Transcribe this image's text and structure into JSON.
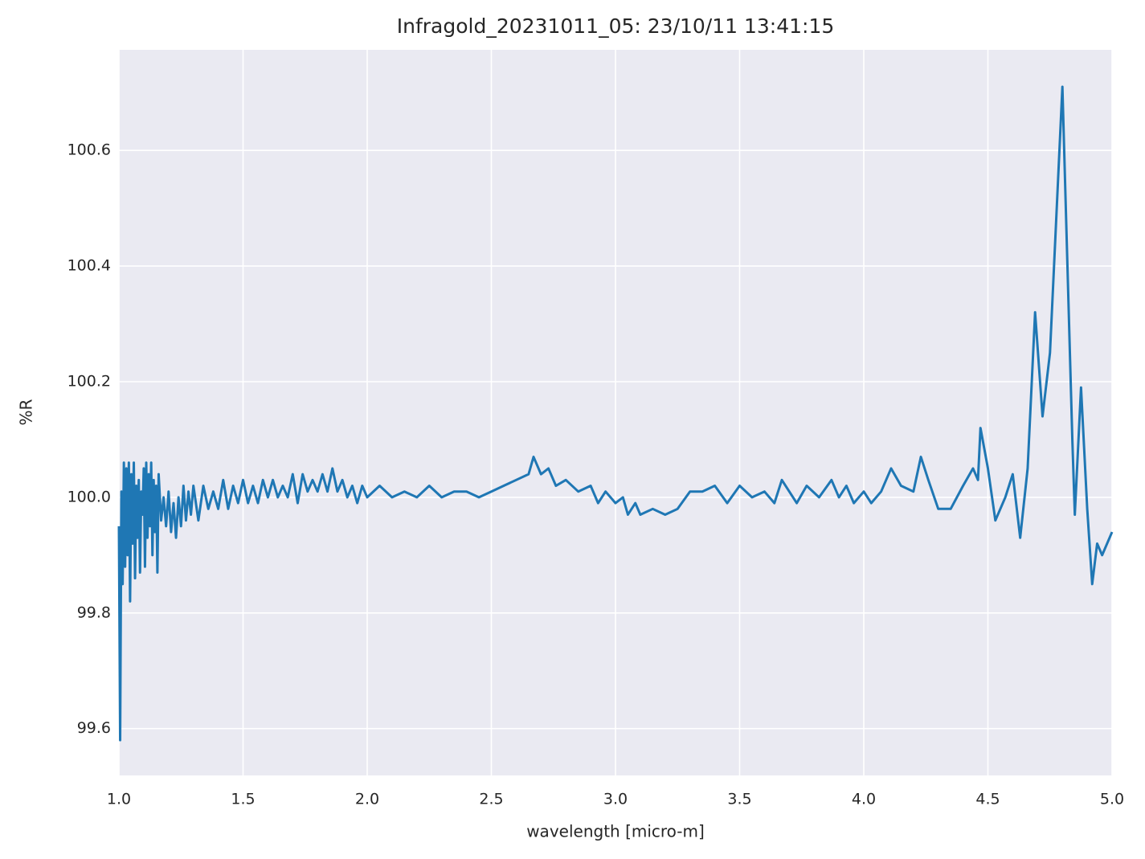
{
  "chart_data": {
    "type": "line",
    "title": "Infragold_20231011_05:  23/10/11 13:41:15",
    "xlabel": "wavelength [micro-m]",
    "ylabel": "%R",
    "xlim": [
      1,
      5
    ],
    "ylim": [
      99.519,
      100.774
    ],
    "xticks": [
      {
        "value": 1,
        "label": "1.0"
      },
      1.5,
      {
        "value": 2,
        "label": "2.0"
      },
      2.5,
      {
        "value": 3,
        "label": "3.0"
      },
      3.5,
      {
        "value": 4,
        "label": "4.0"
      },
      4.5,
      {
        "value": 5,
        "label": "5.0"
      }
    ],
    "yticks": [
      99.6,
      99.8,
      {
        "value": 100,
        "label": "100.0"
      },
      100.2,
      100.4,
      100.6
    ],
    "grid": true,
    "series": [
      {
        "color": "#1f77b4",
        "x": [
          1.0,
          1.005,
          1.01,
          1.015,
          1.02,
          1.025,
          1.03,
          1.035,
          1.04,
          1.045,
          1.05,
          1.055,
          1.06,
          1.065,
          1.07,
          1.075,
          1.08,
          1.085,
          1.09,
          1.095,
          1.1,
          1.105,
          1.11,
          1.115,
          1.12,
          1.125,
          1.13,
          1.135,
          1.14,
          1.145,
          1.15,
          1.155,
          1.16,
          1.17,
          1.18,
          1.19,
          1.2,
          1.21,
          1.22,
          1.23,
          1.24,
          1.25,
          1.26,
          1.27,
          1.28,
          1.29,
          1.3,
          1.32,
          1.34,
          1.36,
          1.38,
          1.4,
          1.42,
          1.44,
          1.46,
          1.48,
          1.5,
          1.52,
          1.54,
          1.56,
          1.58,
          1.6,
          1.62,
          1.64,
          1.66,
          1.68,
          1.7,
          1.72,
          1.74,
          1.76,
          1.78,
          1.8,
          1.82,
          1.84,
          1.86,
          1.88,
          1.9,
          1.92,
          1.94,
          1.96,
          1.98,
          2.0,
          2.05,
          2.1,
          2.15,
          2.2,
          2.25,
          2.3,
          2.35,
          2.4,
          2.45,
          2.5,
          2.55,
          2.6,
          2.65,
          2.67,
          2.7,
          2.73,
          2.76,
          2.8,
          2.85,
          2.9,
          2.93,
          2.96,
          3.0,
          3.03,
          3.05,
          3.08,
          3.1,
          3.15,
          3.2,
          3.25,
          3.3,
          3.35,
          3.4,
          3.45,
          3.5,
          3.55,
          3.6,
          3.64,
          3.67,
          3.7,
          3.73,
          3.77,
          3.82,
          3.87,
          3.9,
          3.93,
          3.96,
          4.0,
          4.03,
          4.07,
          4.11,
          4.15,
          4.2,
          4.23,
          4.26,
          4.3,
          4.35,
          4.4,
          4.44,
          4.46,
          4.47,
          4.5,
          4.53,
          4.57,
          4.6,
          4.63,
          4.66,
          4.69,
          4.72,
          4.75,
          4.8,
          4.84,
          4.85,
          4.875,
          4.9,
          4.92,
          4.94,
          4.96,
          5.0
        ],
        "values": [
          99.95,
          99.58,
          100.01,
          99.85,
          100.06,
          99.88,
          100.05,
          99.9,
          100.06,
          99.82,
          100.04,
          99.92,
          100.06,
          99.86,
          100.02,
          99.93,
          100.03,
          99.87,
          100.01,
          99.97,
          100.05,
          99.88,
          100.06,
          99.93,
          100.04,
          99.95,
          100.06,
          99.9,
          100.03,
          99.94,
          100.02,
          99.87,
          100.04,
          99.96,
          100.0,
          99.95,
          100.01,
          99.94,
          99.99,
          99.93,
          100.0,
          99.95,
          100.02,
          99.96,
          100.01,
          99.97,
          100.02,
          99.96,
          100.02,
          99.98,
          100.01,
          99.98,
          100.03,
          99.98,
          100.02,
          99.99,
          100.03,
          99.99,
          100.02,
          99.99,
          100.03,
          100.0,
          100.03,
          100.0,
          100.02,
          100.0,
          100.04,
          99.99,
          100.04,
          100.01,
          100.03,
          100.01,
          100.04,
          100.01,
          100.05,
          100.01,
          100.03,
          100.0,
          100.02,
          99.99,
          100.02,
          100.0,
          100.02,
          100.0,
          100.01,
          100.0,
          100.02,
          100.0,
          100.01,
          100.01,
          100.0,
          100.01,
          100.02,
          100.03,
          100.04,
          100.07,
          100.04,
          100.05,
          100.02,
          100.03,
          100.01,
          100.02,
          99.99,
          100.01,
          99.99,
          100.0,
          99.97,
          99.99,
          99.97,
          99.98,
          99.97,
          99.98,
          100.01,
          100.01,
          100.02,
          99.99,
          100.02,
          100.0,
          100.01,
          99.99,
          100.03,
          100.01,
          99.99,
          100.02,
          100.0,
          100.03,
          100.0,
          100.02,
          99.99,
          100.01,
          99.99,
          100.01,
          100.05,
          100.02,
          100.01,
          100.07,
          100.03,
          99.98,
          99.98,
          100.02,
          100.05,
          100.03,
          100.12,
          100.05,
          99.96,
          100.0,
          100.04,
          99.93,
          100.05,
          100.32,
          100.14,
          100.25,
          100.71,
          100.1,
          99.97,
          100.19,
          99.98,
          99.85,
          99.92,
          99.9,
          99.94
        ]
      }
    ]
  }
}
